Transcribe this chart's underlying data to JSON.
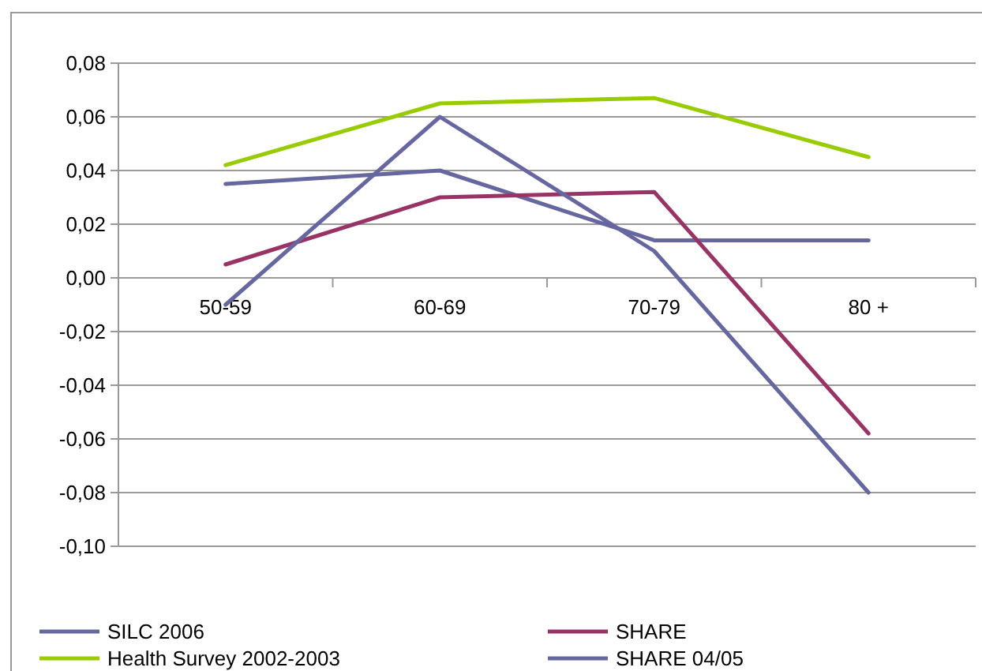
{
  "chart_data": {
    "type": "line",
    "categories": [
      "50-59",
      "60-69",
      "70-79",
      "80 +"
    ],
    "series": [
      {
        "name": "SILC 2006",
        "color": "#6666a0",
        "values": [
          0.035,
          0.04,
          0.014,
          0.014
        ]
      },
      {
        "name": "SHARE",
        "color": "#993366",
        "values": [
          0.005,
          0.03,
          0.032,
          -0.058
        ]
      },
      {
        "name": "Health Survey 2002-2003",
        "color": "#99cc00",
        "values": [
          0.042,
          0.065,
          0.067,
          0.045
        ]
      },
      {
        "name": "SHARE 04/05",
        "color": "#6666a0",
        "values": [
          -0.01,
          0.06,
          0.01,
          -0.08
        ]
      }
    ],
    "ylim": [
      -0.1,
      0.08
    ],
    "yticks": [
      {
        "value": -0.1,
        "label": "-0,10"
      },
      {
        "value": -0.08,
        "label": "-0,08"
      },
      {
        "value": -0.06,
        "label": "-0,06"
      },
      {
        "value": -0.04,
        "label": "-0,04"
      },
      {
        "value": -0.02,
        "label": "-0,02"
      },
      {
        "value": 0,
        "label": "0,00"
      },
      {
        "value": 0.02,
        "label": "0,02"
      },
      {
        "value": 0.04,
        "label": "0,04"
      },
      {
        "value": 0.06,
        "label": "0,06"
      },
      {
        "value": 0.08,
        "label": "0,08"
      }
    ],
    "grid": "y",
    "legend": "bottom",
    "marker": "none",
    "line_style": "solid"
  }
}
